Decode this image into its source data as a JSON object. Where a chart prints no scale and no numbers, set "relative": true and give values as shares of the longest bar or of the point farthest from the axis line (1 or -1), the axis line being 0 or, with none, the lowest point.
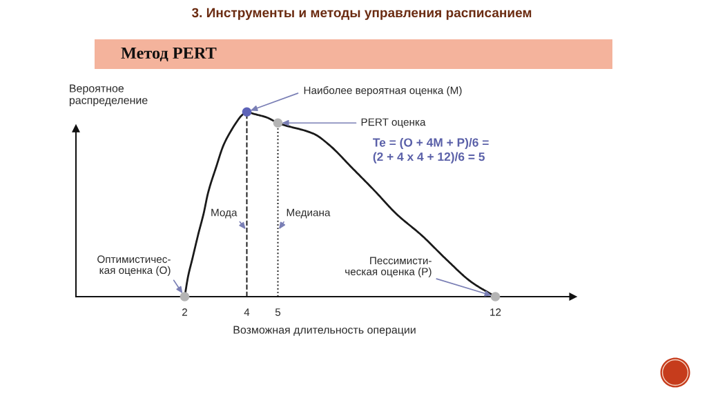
{
  "chart_data": {
    "type": "line",
    "title": "3. Инструменты и методы управления расписанием",
    "subtitle": "Метод PERT",
    "xlabel": "Возможная длительность операции",
    "ylabel": "Вероятное\nраспределение",
    "relative": true,
    "xlim": [
      -1.5,
      14.5
    ],
    "xticks": [
      2,
      4,
      5,
      12
    ],
    "tick_labels": "x",
    "series": [
      {
        "color": "#1a1a1a",
        "x": [
          2,
          2.11,
          2.24,
          2.44,
          2.61,
          2.75,
          3.01,
          3.25,
          3.5,
          3.65,
          3.83,
          4,
          4.21,
          4.64,
          5,
          6.17,
          6.66,
          7.37,
          8.13,
          8.8,
          9.64,
          10.43,
          11.22,
          12
        ],
        "values": [
          0,
          0.11,
          0.2,
          0.34,
          0.45,
          0.56,
          0.7,
          0.82,
          0.9,
          0.94,
          0.98,
          1,
          0.99,
          0.97,
          0.94,
          0.88,
          0.82,
          0.7,
          0.57,
          0.45,
          0.33,
          0.2,
          0.08,
          0
        ]
      },
      {
        "type": "scatter",
        "marker": "circle",
        "x": [
          2,
          4,
          5,
          12
        ],
        "values": [
          0,
          1,
          0.94,
          0
        ],
        "colors": [
          "#b4b4b4",
          "#5d63b8",
          "#b4b4b4",
          "#b4b4b4"
        ]
      }
    ],
    "ref_lines": [
      {
        "axis": "x",
        "value": 4,
        "label": "Мода",
        "line_style": "dashed",
        "color": "#1a1a1a"
      },
      {
        "axis": "x",
        "value": 5,
        "label": "Медиана",
        "line_style": "dotted",
        "color": "#1a1a1a"
      }
    ],
    "annotations": [
      {
        "text": "Наиболее вероятная оценка (M)",
        "x": 4,
        "y": 1
      },
      {
        "text": "PERT оценка",
        "x": 5,
        "y": 0.94
      },
      "Te = (O + 4M + P)/6 =\n(2 + 4 x 4 + 12)/6 = 5",
      {
        "text": "Оптимистичес-\nкая оценка (O)",
        "x": 2,
        "y": 0
      },
      {
        "text": "Пессимисти-\nческая оценка (P)",
        "x": 12,
        "y": 0
      }
    ]
  }
}
